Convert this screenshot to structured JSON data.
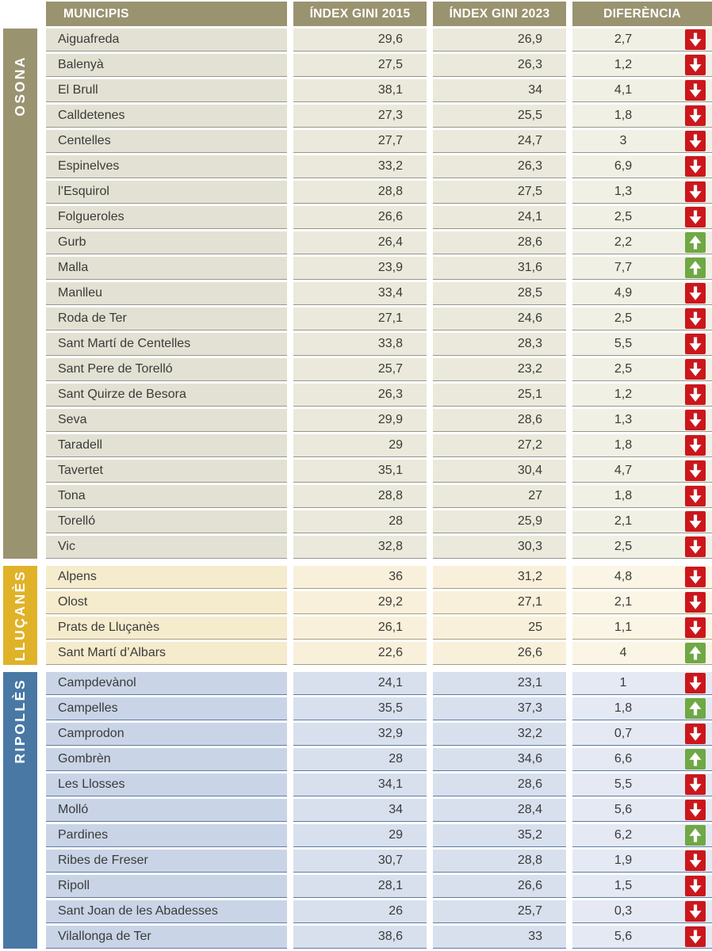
{
  "colors": {
    "header_bg": "#9a9370",
    "trend_down": "#cb171c",
    "trend_up": "#6fa845",
    "body_text": "#3b3b39"
  },
  "table": {
    "columns": [
      "MUNICIPIS",
      "ÍNDEX GINI 2015",
      "ÍNDEX GINI 2023",
      "DIFERÈNCIA"
    ],
    "sections": [
      {
        "label": "OSONA",
        "band_color": "#9a9370",
        "name_bg": "#e2e1d3",
        "num_bg": "#eae9db",
        "dif_bg": "#f1f0e5",
        "line_color": "#97978e",
        "band_pad": 34,
        "rows": [
          [
            "Aiguafreda",
            "29,6",
            "26,9",
            "2,7",
            "down"
          ],
          [
            "Balenyà",
            "27,5",
            "26,3",
            "1,2",
            "down"
          ],
          [
            "El Brull",
            "38,1",
            "34",
            "4,1",
            "down"
          ],
          [
            "Calldetenes",
            "27,3",
            "25,5",
            "1,8",
            "down"
          ],
          [
            "Centelles",
            "27,7",
            "24,7",
            "3",
            "down"
          ],
          [
            "Espinelves",
            "33,2",
            "26,3",
            "6,9",
            "down"
          ],
          [
            "l’Esquirol",
            "28,8",
            "27,5",
            "1,3",
            "down"
          ],
          [
            "Folgueroles",
            "26,6",
            "24,1",
            "2,5",
            "down"
          ],
          [
            "Gurb",
            "26,4",
            "28,6",
            "2,2",
            "up"
          ],
          [
            "Malla",
            "23,9",
            "31,6",
            "7,7",
            "up"
          ],
          [
            "Manlleu",
            "33,4",
            "28,5",
            "4,9",
            "down"
          ],
          [
            "Roda de Ter",
            "27,1",
            "24,6",
            "2,5",
            "down"
          ],
          [
            "Sant Martí de Centelles",
            "33,8",
            "28,3",
            "5,5",
            "down"
          ],
          [
            "Sant Pere de Torelló",
            "25,7",
            "23,2",
            "2,5",
            "down"
          ],
          [
            "Sant Quirze de Besora",
            "26,3",
            "25,1",
            "1,2",
            "down"
          ],
          [
            "Seva",
            "29,9",
            "28,6",
            "1,3",
            "down"
          ],
          [
            "Taradell",
            "29",
            "27,2",
            "1,8",
            "down"
          ],
          [
            "Tavertet",
            "35,1",
            "30,4",
            "4,7",
            "down"
          ],
          [
            "Tona",
            "28,8",
            "27",
            "1,8",
            "down"
          ],
          [
            "Torelló",
            "28",
            "25,9",
            "2,1",
            "down"
          ],
          [
            "Vic",
            "32,8",
            "30,3",
            "2,5",
            "down"
          ]
        ]
      },
      {
        "label": "LLUÇANÈS",
        "band_color": "#e0b228",
        "name_bg": "#f5ebcd",
        "num_bg": "#f8f0da",
        "dif_bg": "#fbf5e6",
        "line_color": "#a89f83",
        "band_pad": 5,
        "rows": [
          [
            "Alpens",
            "36",
            "31,2",
            "4,8",
            "down"
          ],
          [
            "Olost",
            "29,2",
            "27,1",
            "2,1",
            "down"
          ],
          [
            "Prats de Lluçanès",
            "26,1",
            "25",
            "1,1",
            "down"
          ],
          [
            "Sant Martí d’Albars",
            "22,6",
            "26,6",
            "4",
            "up"
          ]
        ]
      },
      {
        "label": "RIPOLLÈS",
        "band_color": "#4978a5",
        "name_bg": "#c9d4e7",
        "num_bg": "#d8e0ee",
        "dif_bg": "#e4e9f4",
        "line_color": "#5e7ba1",
        "band_pad": 8,
        "rows": [
          [
            "Campdevànol",
            "24,1",
            "23,1",
            "1",
            "down"
          ],
          [
            "Campelles",
            "35,5",
            "37,3",
            "1,8",
            "up"
          ],
          [
            "Camprodon",
            "32,9",
            "32,2",
            "0,7",
            "down"
          ],
          [
            "Gombrèn",
            "28",
            "34,6",
            "6,6",
            "up"
          ],
          [
            "Les Llosses",
            "34,1",
            "28,6",
            "5,5",
            "down"
          ],
          [
            "Molló",
            "34",
            "28,4",
            "5,6",
            "down"
          ],
          [
            "Pardines",
            "29",
            "35,2",
            "6,2",
            "up"
          ],
          [
            "Ribes de Freser",
            "30,7",
            "28,8",
            "1,9",
            "down"
          ],
          [
            "Ripoll",
            "28,1",
            "26,6",
            "1,5",
            "down"
          ],
          [
            "Sant Joan de les Abadesses",
            "26",
            "25,7",
            "0,3",
            "down"
          ],
          [
            "Vilallonga de Ter",
            "38,6",
            "33",
            "5,6",
            "down"
          ]
        ]
      }
    ]
  }
}
